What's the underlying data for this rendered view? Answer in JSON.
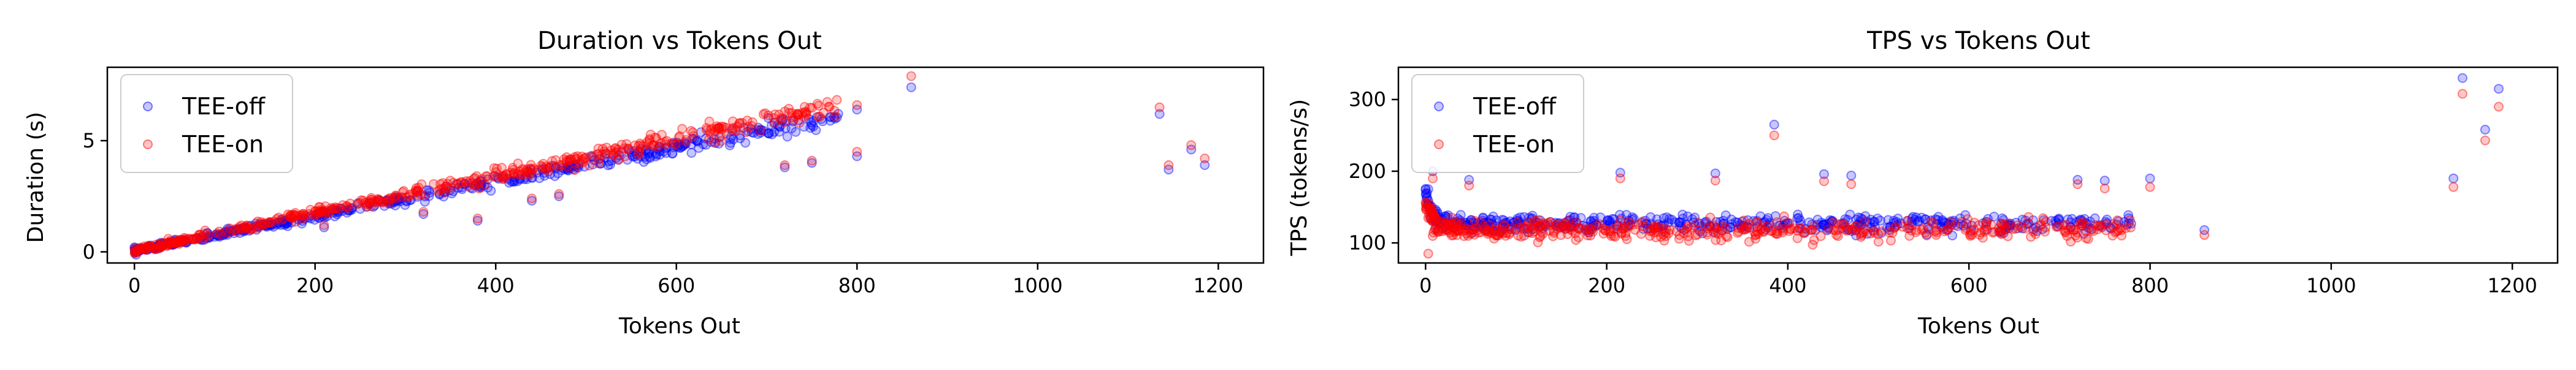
{
  "figure": {
    "background": "#ffffff"
  },
  "chart_data": [
    {
      "type": "scatter",
      "title": "Duration vs Tokens Out",
      "xlabel": "Tokens Out",
      "ylabel": "Duration (s)",
      "xlim": [
        -30,
        1250
      ],
      "ylim": [
        -0.5,
        8.3
      ],
      "xticks": [
        0,
        200,
        400,
        600,
        800,
        1000,
        1200
      ],
      "yticks": [
        0,
        5
      ],
      "legend": "upper-left",
      "series": [
        {
          "name": "TEE-off",
          "color": "#0000ff",
          "trend": {
            "kind": "linear",
            "x_start": 0,
            "x_end": 780,
            "y_start": 0.05,
            "y_end": 6.1,
            "count": 480,
            "noise": 0.14
          },
          "points": [
            [
              210,
              1.1
            ],
            [
              320,
              1.7
            ],
            [
              380,
              1.4
            ],
            [
              440,
              2.3
            ],
            [
              470,
              2.5
            ],
            [
              720,
              3.8
            ],
            [
              750,
              4.0
            ],
            [
              800,
              4.3
            ],
            [
              800,
              6.4
            ],
            [
              860,
              7.4
            ],
            [
              1135,
              6.2
            ],
            [
              1145,
              3.7
            ],
            [
              1170,
              4.6
            ],
            [
              1185,
              3.9
            ]
          ]
        },
        {
          "name": "TEE-on",
          "color": "#ff0000",
          "trend": {
            "kind": "linear",
            "x_start": 0,
            "x_end": 780,
            "y_start": 0.05,
            "y_end": 6.6,
            "count": 480,
            "noise": 0.16
          },
          "points": [
            [
              210,
              1.2
            ],
            [
              320,
              1.8
            ],
            [
              380,
              1.5
            ],
            [
              440,
              2.4
            ],
            [
              470,
              2.6
            ],
            [
              720,
              3.9
            ],
            [
              750,
              4.1
            ],
            [
              800,
              4.5
            ],
            [
              800,
              6.6
            ],
            [
              860,
              7.9
            ],
            [
              1135,
              6.5
            ],
            [
              1145,
              3.9
            ],
            [
              1170,
              4.8
            ],
            [
              1185,
              4.2
            ]
          ]
        }
      ]
    },
    {
      "type": "scatter",
      "title": "TPS vs Tokens Out",
      "xlabel": "Tokens Out",
      "ylabel": "TPS (tokens/s)",
      "xlim": [
        -30,
        1250
      ],
      "ylim": [
        72,
        345
      ],
      "xticks": [
        0,
        200,
        400,
        600,
        800,
        1000,
        1200
      ],
      "yticks": [
        100,
        200,
        300
      ],
      "legend": "upper-left",
      "series": [
        {
          "name": "TEE-off",
          "color": "#0000ff",
          "trend": {
            "kind": "decay",
            "x_start": 0,
            "x_end": 780,
            "base": 126,
            "spike": 45,
            "decay": 8,
            "count": 480,
            "noise": 6
          },
          "points": [
            [
              3,
              175
            ],
            [
              8,
              200
            ],
            [
              48,
              188
            ],
            [
              215,
              198
            ],
            [
              320,
              197
            ],
            [
              385,
              265
            ],
            [
              440,
              196
            ],
            [
              470,
              194
            ],
            [
              720,
              188
            ],
            [
              750,
              187
            ],
            [
              800,
              190
            ],
            [
              860,
              118
            ],
            [
              1135,
              190
            ],
            [
              1145,
              330
            ],
            [
              1170,
              258
            ],
            [
              1185,
              315
            ]
          ]
        },
        {
          "name": "TEE-on",
          "color": "#ff0000",
          "trend": {
            "kind": "decay",
            "x_start": 0,
            "x_end": 780,
            "base": 118,
            "spike": 40,
            "decay": 8,
            "count": 480,
            "noise": 7
          },
          "points": [
            [
              3,
              85
            ],
            [
              8,
              190
            ],
            [
              48,
              180
            ],
            [
              215,
              190
            ],
            [
              320,
              187
            ],
            [
              385,
              250
            ],
            [
              440,
              186
            ],
            [
              470,
              182
            ],
            [
              720,
              182
            ],
            [
              750,
              176
            ],
            [
              800,
              178
            ],
            [
              860,
              111
            ],
            [
              1135,
              178
            ],
            [
              1145,
              308
            ],
            [
              1170,
              243
            ],
            [
              1185,
              290
            ]
          ]
        }
      ]
    }
  ]
}
